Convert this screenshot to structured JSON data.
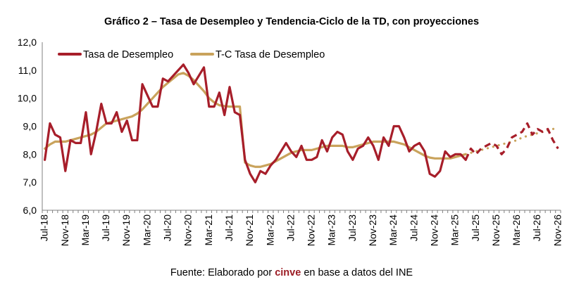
{
  "chart_data": {
    "type": "line",
    "title": "Gráfico 2 – Tasa de Desempleo y Tendencia-Ciclo de la TD, con proyecciones",
    "source_prefix": "Fuente: Elaborado por ",
    "source_brand": "cinve",
    "source_suffix": " en base a datos del INE",
    "ylim": [
      6.0,
      12.0
    ],
    "y_ticks": [
      "6,0",
      "7,0",
      "8,0",
      "9,0",
      "10,0",
      "11,0",
      "12,0"
    ],
    "x_tick_labels": [
      "Jul-18",
      "Nov-18",
      "Mar-19",
      "Jul-19",
      "Nov-19",
      "Mar-20",
      "Jul-20",
      "Nov-20",
      "Mar-21",
      "Jul-21",
      "Nov-21",
      "Mar-22",
      "Jul-22",
      "Nov-22",
      "Mar-23",
      "Jul-23",
      "Nov-23",
      "Mar-24",
      "Jul-24",
      "Nov-24",
      "Mar-25",
      "Jul-25",
      "Nov-25",
      "Mar-26",
      "Jul-26",
      "Nov-26"
    ],
    "legend_position": "top-left",
    "colors": {
      "td": "#a71e2a",
      "tc": "#c9a35c",
      "axis": "#808080"
    },
    "observed_until_index": 82,
    "series": [
      {
        "name": "Tasa de Desempleo",
        "values": [
          7.8,
          9.1,
          8.7,
          8.6,
          7.4,
          8.5,
          8.4,
          8.4,
          9.5,
          8.0,
          8.8,
          9.8,
          9.1,
          9.1,
          9.5,
          8.8,
          9.2,
          8.5,
          8.5,
          10.5,
          10.1,
          9.7,
          9.7,
          10.7,
          10.6,
          10.8,
          11.0,
          11.2,
          10.9,
          10.5,
          10.8,
          11.1,
          9.7,
          9.7,
          10.2,
          9.4,
          10.4,
          9.5,
          9.4,
          7.8,
          7.3,
          7.0,
          7.4,
          7.3,
          7.6,
          7.8,
          8.1,
          8.4,
          8.1,
          7.9,
          8.3,
          7.8,
          7.8,
          7.9,
          8.5,
          8.1,
          8.6,
          8.8,
          8.7,
          8.1,
          7.8,
          8.2,
          8.3,
          8.6,
          8.3,
          7.8,
          8.6,
          8.3,
          9.0,
          9.0,
          8.6,
          8.1,
          8.3,
          8.4,
          8.1,
          7.3,
          7.2,
          7.4,
          8.1,
          7.9,
          8.0,
          8.0,
          7.8,
          8.2,
          8.0,
          8.2,
          8.3,
          8.4,
          8.3,
          8.0,
          8.2,
          8.6,
          8.7,
          8.8,
          9.1,
          8.7,
          8.9,
          8.8,
          8.9,
          8.5,
          8.2
        ]
      },
      {
        "name": "T-C Tasa de Desempleo",
        "values": [
          8.2,
          8.35,
          8.45,
          8.45,
          8.45,
          8.5,
          8.55,
          8.6,
          8.65,
          8.7,
          8.8,
          8.95,
          9.1,
          9.15,
          9.2,
          9.25,
          9.3,
          9.35,
          9.45,
          9.6,
          9.8,
          10.0,
          10.2,
          10.4,
          10.55,
          10.7,
          10.85,
          10.9,
          10.8,
          10.65,
          10.45,
          10.25,
          10.0,
          9.85,
          9.75,
          9.72,
          9.7,
          9.7,
          9.7,
          7.7,
          7.6,
          7.55,
          7.55,
          7.6,
          7.65,
          7.75,
          7.85,
          7.95,
          8.05,
          8.1,
          8.15,
          8.15,
          8.15,
          8.2,
          8.25,
          8.3,
          8.3,
          8.3,
          8.3,
          8.25,
          8.25,
          8.3,
          8.35,
          8.4,
          8.45,
          8.45,
          8.45,
          8.45,
          8.45,
          8.4,
          8.35,
          8.25,
          8.15,
          8.05,
          7.95,
          7.88,
          7.85,
          7.85,
          7.85,
          7.85,
          7.9,
          7.95,
          8.0,
          8.05,
          8.1,
          8.15,
          8.2,
          8.25,
          8.3,
          8.35,
          8.4,
          8.45,
          8.5,
          8.6,
          8.65,
          8.7,
          8.75,
          8.8,
          8.85,
          8.9,
          8.95
        ]
      }
    ]
  }
}
